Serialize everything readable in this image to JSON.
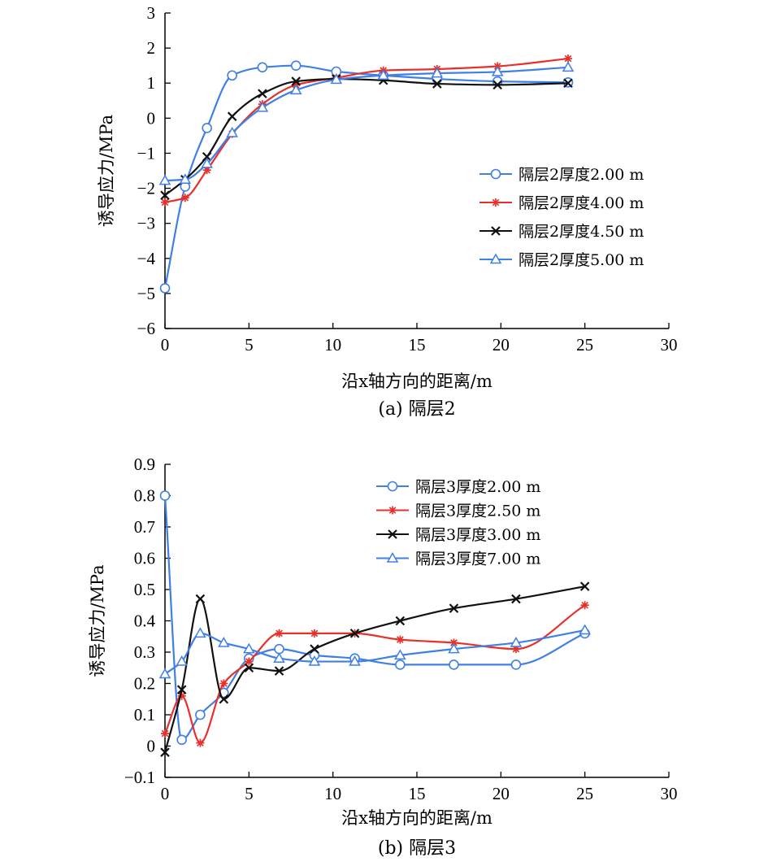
{
  "chart_data": [
    {
      "type": "line",
      "caption": "(a) 隔层2",
      "xlabel": "沿x轴方向的距离/m",
      "ylabel": "诱导应力/MPa",
      "xlim": [
        0,
        30
      ],
      "ylim": [
        -6,
        3
      ],
      "xticks": [
        0,
        5,
        10,
        15,
        20,
        25,
        30
      ],
      "xtick_labels": [
        "0",
        "5",
        "10",
        "15",
        "20",
        "25",
        "30"
      ],
      "yticks": [
        -6,
        -5,
        -4,
        -3,
        -2,
        -1,
        0,
        1,
        2,
        3
      ],
      "ytick_labels": [
        "−6",
        "−5",
        "−4",
        "−3",
        "−2",
        "−1",
        "0",
        "1",
        "2",
        "3"
      ],
      "grid": false,
      "legend_position": "right",
      "series": [
        {
          "name": "隔层2厚度2.00 m",
          "color": "#3f7fe6",
          "marker": "circle",
          "x": [
            0,
            1.2,
            2.5,
            4.0,
            5.8,
            7.8,
            10.2,
            13.0,
            16.2,
            19.8,
            24.0
          ],
          "y": [
            -4.85,
            -1.95,
            -0.28,
            1.22,
            1.45,
            1.5,
            1.33,
            1.22,
            1.12,
            1.05,
            1.02
          ]
        },
        {
          "name": "隔层2厚度4.00 m",
          "color": "#e8302a",
          "marker": "asterisk",
          "x": [
            0,
            1.2,
            2.5,
            4.0,
            5.8,
            7.8,
            10.2,
            13.0,
            16.2,
            19.8,
            24.0
          ],
          "y": [
            -2.4,
            -2.27,
            -1.48,
            -0.45,
            0.4,
            0.95,
            1.15,
            1.36,
            1.4,
            1.48,
            1.7
          ]
        },
        {
          "name": "隔层2厚度4.50 m",
          "color": "#111111",
          "marker": "x",
          "x": [
            0,
            1.2,
            2.5,
            4.0,
            5.8,
            7.8,
            10.2,
            13.0,
            16.2,
            19.8,
            24.0
          ],
          "y": [
            -2.2,
            -1.75,
            -1.1,
            0.05,
            0.7,
            1.05,
            1.12,
            1.08,
            0.98,
            0.95,
            1.0
          ]
        },
        {
          "name": "隔层2厚度5.00 m",
          "color": "#3f7fe6",
          "marker": "triangle",
          "x": [
            0,
            1.2,
            2.5,
            4.0,
            5.8,
            7.8,
            10.2,
            13.0,
            16.2,
            19.8,
            24.0
          ],
          "y": [
            -1.78,
            -1.75,
            -1.3,
            -0.42,
            0.3,
            0.8,
            1.1,
            1.22,
            1.28,
            1.32,
            1.45
          ]
        }
      ]
    },
    {
      "type": "line",
      "caption": "(b) 隔层3",
      "xlabel": "沿x轴方向的距离/m",
      "ylabel": "诱导应力/MPa",
      "xlim": [
        0,
        30
      ],
      "ylim": [
        -0.1,
        0.9
      ],
      "xticks": [
        0,
        5,
        10,
        15,
        20,
        25,
        30
      ],
      "xtick_labels": [
        "0",
        "5",
        "10",
        "15",
        "20",
        "25",
        "30"
      ],
      "yticks": [
        -0.1,
        0,
        0.1,
        0.2,
        0.3,
        0.4,
        0.5,
        0.6,
        0.7,
        0.8,
        0.9
      ],
      "ytick_labels": [
        "−0.1",
        "0",
        "0.1",
        "0.2",
        "0.3",
        "0.4",
        "0.5",
        "0.6",
        "0.7",
        "0.8",
        "0.9"
      ],
      "grid": false,
      "legend_position": "top-right",
      "series": [
        {
          "name": "隔层3厚度2.00 m",
          "color": "#3f7fe6",
          "marker": "circle",
          "x": [
            0,
            1.0,
            2.1,
            3.5,
            5.0,
            6.8,
            8.9,
            11.3,
            14.0,
            17.2,
            20.9,
            25.0
          ],
          "y": [
            0.8,
            0.02,
            0.1,
            0.17,
            0.28,
            0.31,
            0.29,
            0.28,
            0.26,
            0.26,
            0.26,
            0.36
          ]
        },
        {
          "name": "隔层3厚度2.50 m",
          "color": "#e8302a",
          "marker": "asterisk",
          "x": [
            0,
            1.0,
            2.1,
            3.5,
            5.0,
            6.8,
            8.9,
            11.3,
            14.0,
            17.2,
            20.9,
            25.0
          ],
          "y": [
            0.04,
            0.16,
            0.01,
            0.2,
            0.27,
            0.36,
            0.36,
            0.36,
            0.34,
            0.33,
            0.31,
            0.45
          ]
        },
        {
          "name": "隔层3厚度3.00 m",
          "color": "#111111",
          "marker": "x",
          "x": [
            0,
            1.0,
            2.1,
            3.5,
            5.0,
            6.8,
            8.9,
            11.3,
            14.0,
            17.2,
            20.9,
            25.0
          ],
          "y": [
            -0.02,
            0.18,
            0.47,
            0.15,
            0.25,
            0.24,
            0.31,
            0.36,
            0.4,
            0.44,
            0.47,
            0.51
          ]
        },
        {
          "name": "隔层3厚度7.00 m",
          "color": "#3f7fe6",
          "marker": "triangle",
          "x": [
            0,
            1.0,
            2.1,
            3.5,
            5.0,
            6.8,
            8.9,
            11.3,
            14.0,
            17.2,
            20.9,
            25.0
          ],
          "y": [
            0.23,
            0.27,
            0.36,
            0.33,
            0.31,
            0.28,
            0.27,
            0.27,
            0.29,
            0.31,
            0.33,
            0.37
          ]
        }
      ]
    }
  ]
}
